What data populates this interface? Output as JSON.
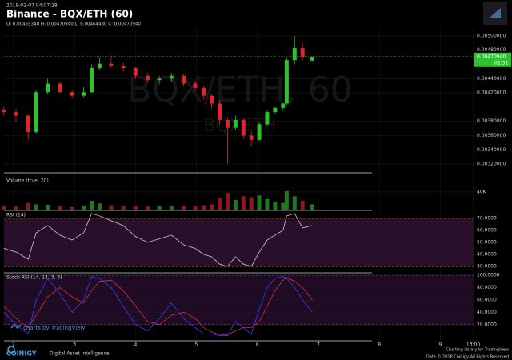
{
  "header": {
    "timestamp": "2018-02-07 04:07:28",
    "title": "Binance - BQX/ETH (60)",
    "ohlc": "O: 0.00465340 H: 0.00470940 L: 0.00464430 C: 0.00470940",
    "watermark": "BQX/ETH, 60",
    "watermark_sub": "BQXETH",
    "price_tag": "0.00470940",
    "countdown": "02:31"
  },
  "chart_data": [
    {
      "type": "candlestick",
      "up_color": "#2fc22f",
      "down_color": "#e0262b",
      "grid": true,
      "x": [
        1.84,
        2.04,
        2.24,
        2.37,
        2.56,
        2.76,
        2.96,
        3.15,
        3.28,
        3.41,
        3.6,
        3.8,
        4.0,
        4.2,
        4.39,
        4.59,
        4.79,
        4.98,
        5.12,
        5.25,
        5.38,
        5.51,
        5.64,
        5.77,
        5.9,
        6.03,
        6.16,
        6.29,
        6.42,
        6.48,
        6.61,
        6.74,
        6.9
      ],
      "open": [
        0.00396,
        0.00393,
        0.00388,
        0.00365,
        0.00421,
        0.00433,
        0.00421,
        0.00416,
        0.00421,
        0.00455,
        0.00461,
        0.00458,
        0.00455,
        0.00444,
        0.00438,
        0.0044,
        0.00444,
        0.00433,
        0.00427,
        0.00416,
        0.00405,
        0.00382,
        0.00371,
        0.00382,
        0.0036,
        0.00354,
        0.00376,
        0.00393,
        0.00399,
        0.00405,
        0.00466,
        0.00483,
        0.0046534
      ],
      "high": [
        0.004,
        0.00398,
        0.0039,
        0.00424,
        0.0044,
        0.00436,
        0.00424,
        0.00428,
        0.0046,
        0.0047,
        0.00472,
        0.00462,
        0.00456,
        0.00448,
        0.00444,
        0.00448,
        0.00446,
        0.00436,
        0.0043,
        0.00418,
        0.0041,
        0.00386,
        0.00388,
        0.00384,
        0.00366,
        0.00378,
        0.00396,
        0.004,
        0.00406,
        0.0047,
        0.005,
        0.0049,
        0.0047094
      ],
      "low": [
        0.00388,
        0.0038,
        0.00354,
        0.00362,
        0.00418,
        0.0042,
        0.00412,
        0.00414,
        0.0042,
        0.00452,
        0.00455,
        0.0045,
        0.0044,
        0.00434,
        0.00432,
        0.00436,
        0.0043,
        0.00422,
        0.0041,
        0.00398,
        0.00375,
        0.0032,
        0.00368,
        0.00355,
        0.00345,
        0.00352,
        0.00374,
        0.0039,
        0.00396,
        0.00403,
        0.0046,
        0.00466,
        0.0046443
      ],
      "close": [
        0.00393,
        0.00388,
        0.00365,
        0.00421,
        0.00433,
        0.00421,
        0.00416,
        0.00421,
        0.00455,
        0.00461,
        0.00458,
        0.00455,
        0.00444,
        0.00438,
        0.0044,
        0.00444,
        0.00433,
        0.00427,
        0.00416,
        0.00405,
        0.00382,
        0.00371,
        0.00382,
        0.0036,
        0.00354,
        0.00376,
        0.00393,
        0.00399,
        0.00405,
        0.00466,
        0.00483,
        0.00471,
        0.0047094
      ],
      "xlim": [
        1.843,
        9.546
      ],
      "xticks": [
        2,
        3,
        4,
        5,
        6,
        7,
        8,
        9,
        {
          "value": 9.54,
          "label": "13:00"
        }
      ],
      "ylim": [
        0.003088,
        0.005112
      ],
      "yticks": [
        {
          "value": 0.005,
          "label": "0.00500000"
        },
        {
          "value": 0.0048,
          "label": "0.00480000"
        },
        {
          "value": 0.0044,
          "label": "0.00440000"
        },
        {
          "value": 0.0042,
          "label": "0.00420000"
        },
        {
          "value": 0.0038,
          "label": "0.00380000"
        },
        {
          "value": 0.0036,
          "label": "0.00360000"
        },
        {
          "value": 0.0034,
          "label": "0.00340000"
        },
        {
          "value": 0.0032,
          "label": "0.00320000"
        }
      ]
    },
    {
      "type": "volume",
      "title": "Volume (true, 20)",
      "values": [
        9000,
        7000,
        15000,
        12000,
        11000,
        8000,
        6000,
        9000,
        20000,
        14000,
        10000,
        8000,
        9000,
        7000,
        8000,
        7000,
        9000,
        8000,
        10000,
        12000,
        25000,
        38000,
        22000,
        30000,
        28000,
        32000,
        24000,
        18000,
        15000,
        42000,
        30000,
        20000,
        12000
      ],
      "ylim": [
        0,
        76000
      ],
      "yticks": [
        {
          "value": 40000,
          "label": "40K"
        }
      ]
    },
    {
      "type": "line",
      "title": "RSI (14)",
      "band_color": "#2a0f2c",
      "level_color": "#b0892c",
      "series": [
        {
          "color": "#c8c8c8",
          "values": [
            45,
            42,
            36,
            58,
            64,
            56,
            52,
            58,
            74,
            72,
            68,
            64,
            55,
            50,
            53,
            56,
            48,
            45,
            40,
            38,
            32,
            30,
            38,
            32,
            30,
            42,
            52,
            56,
            60,
            72,
            74,
            62,
            64
          ]
        }
      ],
      "ylim": [
        25.4,
        75.9
      ],
      "yticks": [
        {
          "value": 70,
          "label": "70.0000"
        },
        {
          "value": 60,
          "label": "60.0000"
        },
        {
          "value": 50,
          "label": "50.0000"
        },
        {
          "value": 40,
          "label": "40.0000"
        },
        {
          "value": 30,
          "label": "30.0000"
        }
      ]
    },
    {
      "type": "line",
      "title": "Stoch RSI (14, 14, 3, 3)",
      "band_color": "#1f0c24",
      "level_color": "#6a3a7a",
      "series": [
        {
          "color": "#3b3bff",
          "values": [
            40,
            20,
            5,
            60,
            95,
            70,
            40,
            60,
            98,
            95,
            80,
            50,
            20,
            10,
            30,
            55,
            30,
            15,
            5,
            5,
            2,
            2,
            25,
            15,
            5,
            45,
            80,
            95,
            98,
            95,
            80,
            60,
            40
          ]
        },
        {
          "color": "#d0304a",
          "values": [
            50,
            30,
            15,
            35,
            65,
            80,
            65,
            55,
            75,
            90,
            92,
            75,
            50,
            25,
            20,
            35,
            40,
            30,
            15,
            8,
            4,
            3,
            10,
            15,
            15,
            25,
            50,
            75,
            92,
            96,
            90,
            80,
            60
          ]
        }
      ],
      "ylim": [
        -4.9,
        102.6
      ],
      "yticks": [
        {
          "value": 100,
          "label": "100.0000"
        },
        {
          "value": 80,
          "label": "80.0000"
        },
        {
          "value": 60,
          "label": "60.0000"
        },
        {
          "value": 40,
          "label": "40.0000"
        },
        {
          "value": 20,
          "label": "20.0000"
        }
      ]
    }
  ],
  "footer": {
    "tradingview": "charts by TradingView",
    "brand": "COINIGY",
    "tagline": "Digital Asset Intelligence",
    "library": "Charting library by TradingView",
    "copyright": "Data © 2018 Coinigy All Rights Reserved"
  }
}
